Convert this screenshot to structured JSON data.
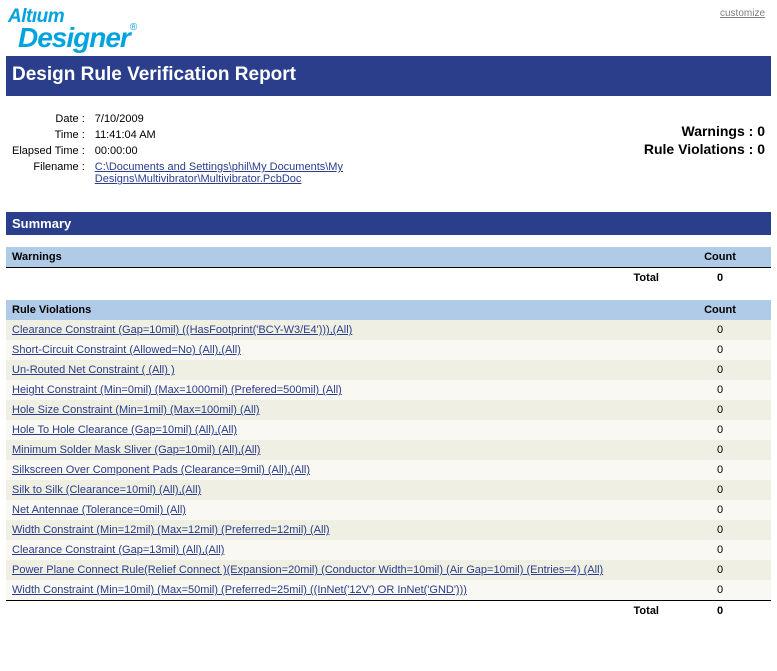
{
  "header": {
    "customize_label": "customize",
    "logo_line1": "Altıum",
    "logo_line2": "Designer",
    "report_title": "Design Rule Verification Report"
  },
  "meta": {
    "date_label": "Date :",
    "date_value": "7/10/2009",
    "time_label": "Time :",
    "time_value": "11:41:04 AM",
    "elapsed_label": "Elapsed Time :",
    "elapsed_value": "00:00:00",
    "filename_label": "Filename :",
    "filename_value": "C:\\Documents and Settings\\phil\\My Documents\\My Designs\\Multivibrator\\Multivibrator.PcbDoc"
  },
  "stats": {
    "warnings_label": "Warnings :",
    "warnings_value": "0",
    "violations_label": "Rule Violations :",
    "violations_value": "0"
  },
  "summary": {
    "title": "Summary",
    "warnings_header": "Warnings",
    "count_header": "Count",
    "total_label": "Total",
    "warnings_total": "0",
    "rule_violations_header": "Rule Violations",
    "violations_total": "0",
    "rules": [
      {
        "label": "Clearance Constraint (Gap=10mil) ((HasFootprint('BCY-W3/E4'))),(All)",
        "count": "0"
      },
      {
        "label": "Short-Circuit Constraint (Allowed=No) (All),(All)",
        "count": "0"
      },
      {
        "label": "Un-Routed Net Constraint ( (All) )",
        "count": "0"
      },
      {
        "label": "Height Constraint (Min=0mil) (Max=1000mil) (Prefered=500mil) (All)",
        "count": "0"
      },
      {
        "label": "Hole Size Constraint (Min=1mil) (Max=100mil) (All)",
        "count": "0"
      },
      {
        "label": "Hole To Hole Clearance (Gap=10mil) (All),(All)",
        "count": "0"
      },
      {
        "label": "Minimum Solder Mask Sliver (Gap=10mil) (All),(All)",
        "count": "0"
      },
      {
        "label": "Silkscreen Over Component Pads (Clearance=9mil) (All),(All)",
        "count": "0"
      },
      {
        "label": "Silk to Silk (Clearance=10mil) (All),(All)",
        "count": "0"
      },
      {
        "label": "Net Antennae (Tolerance=0mil) (All)",
        "count": "0"
      },
      {
        "label": "Width Constraint (Min=12mil) (Max=12mil) (Preferred=12mil) (All)",
        "count": "0"
      },
      {
        "label": "Clearance Constraint (Gap=13mil) (All),(All)",
        "count": "0"
      },
      {
        "label": "Power Plane Connect Rule(Relief Connect )(Expansion=20mil) (Conductor Width=10mil) (Air Gap=10mil) (Entries=4) (All)",
        "count": "0"
      },
      {
        "label": "Width Constraint (Min=10mil) (Max=50mil) (Preferred=25mil) ((InNet('12V') OR InNet('GND')))",
        "count": "0"
      }
    ]
  },
  "style": {
    "bar_color": "#2a3e8c",
    "header_cell_color": "#b0cbe8",
    "row_odd_color": "#f0efe3",
    "row_even_color": "#f9f8f2"
  }
}
